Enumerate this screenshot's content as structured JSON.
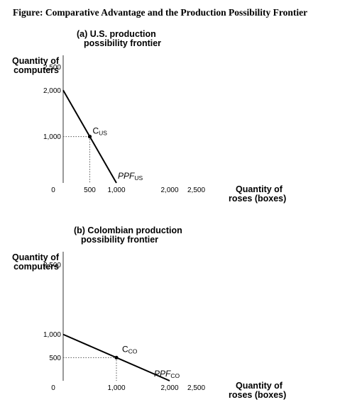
{
  "figure_title": "Figure: Comparative Advantage and the Production Possibility Frontier",
  "chart_data": [
    {
      "type": "line",
      "title_lines": [
        "(a) U.S. production",
        "possibility frontier"
      ],
      "ylabel_lines": [
        "Quantity of",
        "computers"
      ],
      "xlabel_lines": [
        "Quantity of",
        "roses (boxes)"
      ],
      "origin_label": "0",
      "xlim": [
        0,
        2800
      ],
      "ylim": [
        0,
        2800
      ],
      "xticks": [
        {
          "value": 500,
          "label": "500"
        },
        {
          "value": 1000,
          "label": "1,000"
        },
        {
          "value": 2000,
          "label": "2,000"
        },
        {
          "value": 2500,
          "label": "2,500"
        }
      ],
      "yticks": [
        {
          "value": 1000,
          "label": "1,000"
        },
        {
          "value": 2000,
          "label": "2,000"
        },
        {
          "value": 2500,
          "label": "2,500"
        }
      ],
      "series": [
        {
          "name": "PPF",
          "sub": "US",
          "x": [
            0,
            1000
          ],
          "y": [
            2000,
            0
          ]
        }
      ],
      "point": {
        "label": "C",
        "sub": "US",
        "x": 500,
        "y": 1000
      },
      "colors": {
        "line": "#000000",
        "dotted": "#555555"
      }
    },
    {
      "type": "line",
      "title_lines": [
        "(b) Colombian production",
        "possibility frontier"
      ],
      "ylabel_lines": [
        "Quantity of",
        "computers"
      ],
      "xlabel_lines": [
        "Quantity of",
        "roses (boxes)"
      ],
      "origin_label": "0",
      "xlim": [
        0,
        2800
      ],
      "ylim": [
        0,
        2800
      ],
      "xticks": [
        {
          "value": 1000,
          "label": "1,000"
        },
        {
          "value": 2000,
          "label": "2,000"
        },
        {
          "value": 2500,
          "label": "2,500"
        }
      ],
      "yticks": [
        {
          "value": 500,
          "label": "500"
        },
        {
          "value": 1000,
          "label": "1,000"
        },
        {
          "value": 2500,
          "label": "2,500"
        }
      ],
      "series": [
        {
          "name": "PPF",
          "sub": "CO",
          "x": [
            0,
            2000
          ],
          "y": [
            1000,
            0
          ]
        }
      ],
      "point": {
        "label": "C",
        "sub": "CO",
        "x": 1000,
        "y": 500
      },
      "colors": {
        "line": "#000000",
        "dotted": "#555555"
      }
    }
  ]
}
